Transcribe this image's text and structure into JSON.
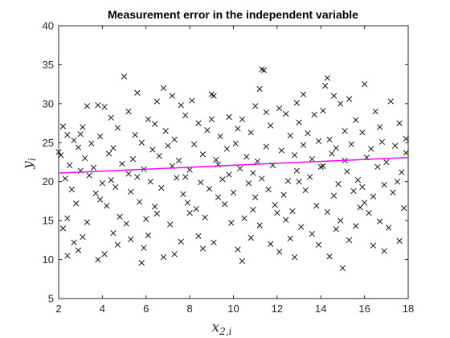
{
  "chart_data": {
    "type": "scatter",
    "title": "Measurement error in the independent variable",
    "xlabel": {
      "base": "x",
      "sub": "2,i"
    },
    "ylabel": {
      "base": "y",
      "sub": "i"
    },
    "xlim": [
      2,
      18
    ],
    "ylim": [
      5,
      40
    ],
    "xticks": [
      2,
      4,
      6,
      8,
      10,
      12,
      14,
      16,
      18
    ],
    "yticks": [
      5,
      10,
      15,
      20,
      25,
      30,
      35,
      40
    ],
    "grid": false,
    "marker": "x",
    "colors": {
      "points": "#000000",
      "fit_line": "#ff00ff",
      "axes": "#262626"
    },
    "fit_line": {
      "x": [
        2,
        18
      ],
      "y": [
        21.1,
        23.1
      ]
    },
    "points": [
      [
        5.0,
        33.5
      ],
      [
        11.3,
        34.4
      ],
      [
        11.4,
        34.3
      ],
      [
        14.3,
        33.3
      ],
      [
        16.0,
        32.5
      ],
      [
        6.8,
        32.0
      ],
      [
        14.2,
        32.3
      ],
      [
        9.0,
        31.2
      ],
      [
        9.1,
        31.0
      ],
      [
        14.6,
        31.0
      ],
      [
        3.3,
        29.7
      ],
      [
        3.8,
        29.8
      ],
      [
        4.1,
        29.6
      ],
      [
        7.6,
        29.8
      ],
      [
        11.0,
        29.7
      ],
      [
        12.1,
        29.4
      ],
      [
        14.9,
        30.0
      ],
      [
        15.3,
        30.6
      ],
      [
        17.2,
        30.3
      ],
      [
        5.2,
        29.0
      ],
      [
        6.5,
        30.3
      ],
      [
        7.8,
        28.5
      ],
      [
        9.8,
        28.3
      ],
      [
        12.4,
        28.7
      ],
      [
        13.7,
        28.6
      ],
      [
        14.1,
        29.1
      ],
      [
        16.5,
        29.0
      ],
      [
        2.2,
        27.1
      ],
      [
        3.1,
        27.0
      ],
      [
        4.7,
        26.9
      ],
      [
        6.1,
        28.0
      ],
      [
        8.4,
        27.5
      ],
      [
        10.4,
        28.0
      ],
      [
        11.7,
        27.2
      ],
      [
        13.0,
        27.6
      ],
      [
        15.6,
        27.9
      ],
      [
        17.6,
        27.5
      ],
      [
        2.4,
        26.0
      ],
      [
        2.7,
        25.3
      ],
      [
        3.9,
        25.8
      ],
      [
        5.5,
        26.0
      ],
      [
        6.9,
        26.5
      ],
      [
        7.3,
        25.4
      ],
      [
        8.8,
        26.6
      ],
      [
        9.4,
        25.8
      ],
      [
        10.8,
        26.3
      ],
      [
        12.6,
        25.9
      ],
      [
        13.4,
        26.2
      ],
      [
        14.4,
        25.4
      ],
      [
        15.9,
        26.3
      ],
      [
        16.8,
        25.1
      ],
      [
        17.9,
        25.5
      ],
      [
        2.9,
        24.4
      ],
      [
        3.5,
        24.9
      ],
      [
        4.5,
        24.3
      ],
      [
        5.8,
        25.0
      ],
      [
        6.3,
        24.1
      ],
      [
        7.0,
        24.6
      ],
      [
        8.2,
        24.8
      ],
      [
        9.7,
        24.2
      ],
      [
        10.1,
        24.9
      ],
      [
        11.5,
        24.5
      ],
      [
        12.2,
        24.0
      ],
      [
        13.2,
        24.7
      ],
      [
        14.7,
        24.3
      ],
      [
        15.4,
        24.8
      ],
      [
        16.3,
        24.2
      ],
      [
        17.4,
        24.6
      ],
      [
        2.1,
        23.4
      ],
      [
        3.2,
        23.0
      ],
      [
        4.3,
        23.6
      ],
      [
        5.4,
        22.9
      ],
      [
        6.6,
        23.3
      ],
      [
        7.5,
        22.7
      ],
      [
        8.6,
        23.5
      ],
      [
        9.2,
        22.8
      ],
      [
        10.6,
        23.2
      ],
      [
        11.1,
        22.6
      ],
      [
        12.8,
        23.4
      ],
      [
        13.6,
        22.9
      ],
      [
        14.5,
        23.6
      ],
      [
        15.1,
        22.7
      ],
      [
        16.1,
        23.1
      ],
      [
        17.0,
        22.5
      ],
      [
        2.5,
        22.1
      ],
      [
        3.6,
        21.8
      ],
      [
        4.9,
        22.3
      ],
      [
        5.9,
        21.6
      ],
      [
        7.2,
        22.0
      ],
      [
        8.0,
        21.5
      ],
      [
        9.3,
        22.2
      ],
      [
        10.3,
        21.7
      ],
      [
        11.8,
        22.1
      ],
      [
        12.9,
        21.4
      ],
      [
        14.0,
        21.9
      ],
      [
        15.2,
        21.3
      ],
      [
        16.6,
        21.9
      ],
      [
        17.7,
        21.2
      ],
      [
        2.3,
        20.4
      ],
      [
        3.4,
        20.8
      ],
      [
        4.4,
        20.2
      ],
      [
        5.6,
        20.6
      ],
      [
        6.2,
        20.0
      ],
      [
        7.4,
        20.5
      ],
      [
        8.5,
        19.9
      ],
      [
        9.5,
        20.3
      ],
      [
        10.7,
        19.8
      ],
      [
        11.3,
        20.4
      ],
      [
        12.5,
        20.1
      ],
      [
        13.5,
        20.6
      ],
      [
        14.8,
        19.7
      ],
      [
        15.7,
        20.2
      ],
      [
        16.9,
        19.6
      ],
      [
        17.5,
        20.0
      ],
      [
        2.6,
        19.0
      ],
      [
        3.7,
        18.5
      ],
      [
        4.6,
        19.3
      ],
      [
        5.3,
        18.7
      ],
      [
        6.7,
        19.2
      ],
      [
        7.7,
        18.4
      ],
      [
        8.9,
        19.1
      ],
      [
        10.0,
        18.6
      ],
      [
        11.6,
        19.0
      ],
      [
        12.3,
        18.3
      ],
      [
        13.3,
        18.9
      ],
      [
        14.6,
        18.2
      ],
      [
        15.5,
        18.8
      ],
      [
        16.4,
        18.1
      ],
      [
        17.3,
        18.6
      ],
      [
        2.8,
        17.2
      ],
      [
        3.9,
        17.7
      ],
      [
        4.2,
        16.9
      ],
      [
        5.7,
        17.4
      ],
      [
        6.4,
        16.8
      ],
      [
        7.9,
        17.3
      ],
      [
        8.3,
        16.5
      ],
      [
        9.6,
        17.1
      ],
      [
        10.9,
        16.4
      ],
      [
        11.9,
        17.0
      ],
      [
        12.7,
        16.2
      ],
      [
        13.8,
        16.9
      ],
      [
        14.3,
        16.1
      ],
      [
        15.8,
        16.7
      ],
      [
        16.2,
        16.0
      ],
      [
        17.8,
        16.6
      ],
      [
        2.4,
        15.3
      ],
      [
        3.3,
        14.8
      ],
      [
        4.8,
        15.5
      ],
      [
        5.1,
        14.6
      ],
      [
        6.0,
        15.2
      ],
      [
        7.1,
        14.5
      ],
      [
        8.7,
        15.4
      ],
      [
        9.9,
        14.7
      ],
      [
        10.5,
        15.3
      ],
      [
        11.2,
        14.4
      ],
      [
        12.4,
        15.1
      ],
      [
        13.1,
        14.2
      ],
      [
        14.9,
        15.0
      ],
      [
        15.6,
        14.3
      ],
      [
        16.7,
        14.9
      ],
      [
        17.1,
        14.1
      ],
      [
        2.2,
        14.0
      ],
      [
        3.1,
        12.9
      ],
      [
        4.5,
        13.4
      ],
      [
        5.3,
        12.6
      ],
      [
        6.1,
        13.1
      ],
      [
        7.6,
        12.3
      ],
      [
        8.4,
        13.0
      ],
      [
        9.1,
        12.2
      ],
      [
        10.8,
        12.8
      ],
      [
        11.7,
        12.0
      ],
      [
        12.6,
        12.7
      ],
      [
        13.9,
        11.9
      ],
      [
        15.3,
        12.5
      ],
      [
        16.4,
        11.8
      ],
      [
        17.6,
        12.4
      ],
      [
        2.9,
        11.2
      ],
      [
        5.9,
        11.5
      ],
      [
        7.3,
        10.7
      ],
      [
        10.2,
        11.3
      ],
      [
        12.1,
        11.0
      ],
      [
        14.4,
        10.4
      ],
      [
        16.9,
        11.1
      ],
      [
        2.4,
        10.5
      ],
      [
        3.8,
        10.0
      ],
      [
        5.8,
        9.6
      ],
      [
        6.8,
        10.3
      ],
      [
        15.0,
        8.9
      ],
      [
        4.1,
        10.7
      ],
      [
        9.0,
        28.0
      ],
      [
        10.2,
        26.8
      ],
      [
        11.5,
        28.9
      ],
      [
        12.9,
        30.1
      ],
      [
        8.1,
        30.4
      ],
      [
        6.4,
        27.4
      ],
      [
        4.4,
        28.2
      ],
      [
        16.7,
        27.0
      ],
      [
        15.1,
        26.5
      ],
      [
        13.9,
        25.2
      ],
      [
        3.0,
        26.1
      ],
      [
        2.0,
        23.8
      ],
      [
        17.9,
        23.7
      ],
      [
        9.8,
        20.9
      ],
      [
        10.9,
        21.1
      ],
      [
        11.0,
        18.0
      ],
      [
        8.0,
        16.0
      ],
      [
        6.5,
        15.9
      ],
      [
        13.0,
        20.0
      ],
      [
        14.1,
        22.0
      ],
      [
        15.9,
        19.3
      ],
      [
        16.0,
        17.3
      ],
      [
        4.0,
        19.8
      ],
      [
        3.0,
        21.4
      ],
      [
        5.2,
        21.0
      ],
      [
        7.8,
        20.6
      ],
      [
        9.3,
        18.0
      ],
      [
        12.0,
        16.0
      ],
      [
        13.6,
        13.3
      ],
      [
        14.7,
        13.9
      ],
      [
        2.7,
        12.2
      ],
      [
        4.7,
        11.9
      ],
      [
        8.6,
        11.4
      ],
      [
        10.4,
        9.8
      ],
      [
        12.8,
        10.3
      ],
      [
        11.2,
        31.9
      ],
      [
        13.2,
        31.2
      ],
      [
        7.2,
        31.0
      ],
      [
        5.6,
        31.4
      ]
    ]
  }
}
